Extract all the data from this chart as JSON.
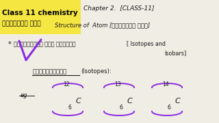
{
  "bg_color": "#f0ede5",
  "yellow_box_color": "#f5e642",
  "yellow_title1": "Class 11 chemistry",
  "yellow_title2": "পৰমাণুৰ গঠন",
  "chapter_text": "Chapter 2.  [CLASS-11]",
  "structure_text": "Structure of  Atom [পৰমাণুৰ গঠন]",
  "bullet_assamese": "সমস্থানিক আৰু সমভাৰী",
  "bracket_text": "[ Isotopes and",
  "isobars_text": "Isobars]",
  "isotopes_assamese": "সমস্থানিকৰ",
  "isotopes_english": "(Isotopes):",
  "eg_text": "eg",
  "mass_numbers": [
    "12",
    "13",
    "14"
  ],
  "atomic_number": "6",
  "element": "C",
  "purple_color": "#8b2be2",
  "text_color": "#1a1a1a",
  "dark_color": "#222222"
}
